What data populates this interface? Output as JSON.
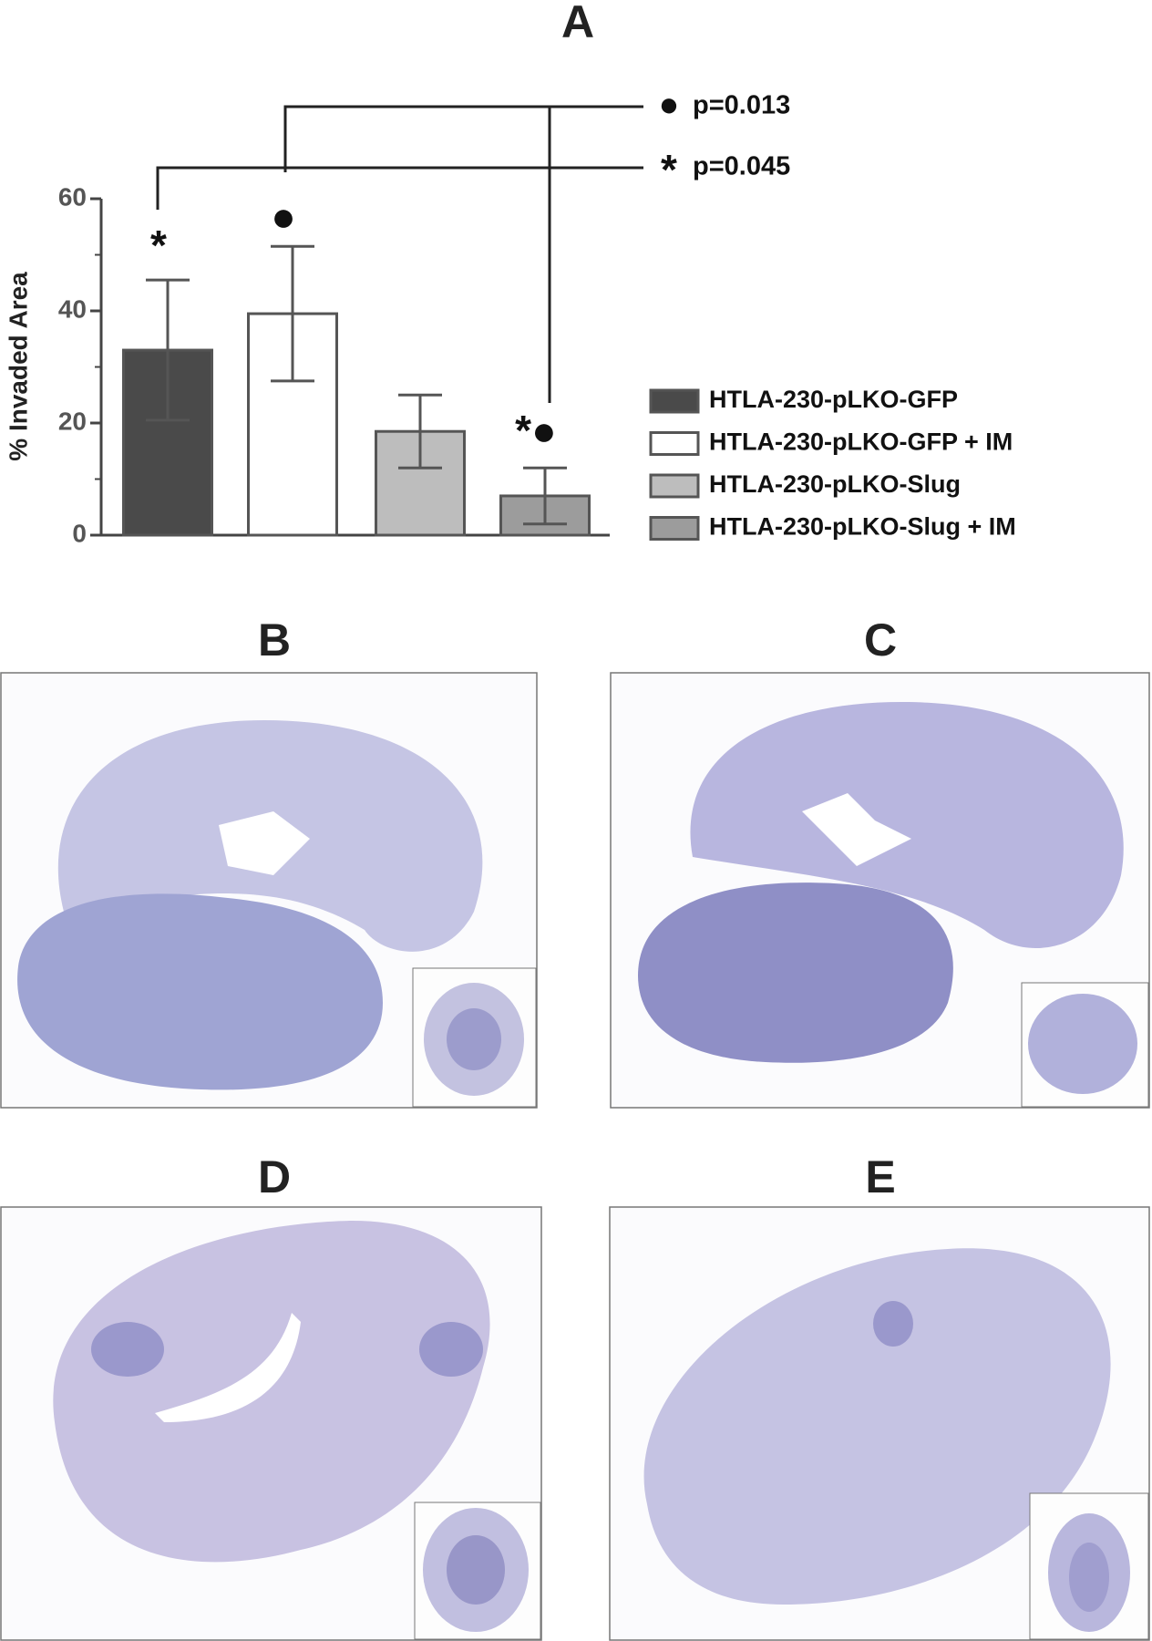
{
  "chart_data": {
    "type": "bar",
    "title": "A",
    "y_label": "% Invaded Area",
    "ylim": [
      0,
      60
    ],
    "yticks": [
      0,
      20,
      40,
      60
    ],
    "minor_yticks": [
      10,
      30,
      50
    ],
    "series": [
      {
        "name": "HTLA-230-pLKO-GFP",
        "color": "#4a4a4a",
        "values": [
          33
        ],
        "errors": [
          12.5
        ],
        "marker": "*"
      },
      {
        "name": "HTLA-230-pLKO-GFP + IM",
        "color": "#ffffff",
        "values": [
          39.5
        ],
        "errors": [
          12
        ],
        "marker": "●"
      },
      {
        "name": "HTLA-230-pLKO-Slug",
        "color": "#bdbdbd",
        "values": [
          18.5
        ],
        "errors": [
          6.5
        ]
      },
      {
        "name": "HTLA-230-pLKO-Slug + IM",
        "color": "#9c9c9c",
        "values": [
          7
        ],
        "errors": [
          5
        ],
        "marker": "*●"
      }
    ],
    "significance": [
      {
        "symbol": "●",
        "label": "p=0.013"
      },
      {
        "symbol": "*",
        "label": "p=0.045"
      }
    ]
  },
  "panels": [
    {
      "label": "B"
    },
    {
      "label": "C"
    },
    {
      "label": "D"
    },
    {
      "label": "E"
    }
  ]
}
